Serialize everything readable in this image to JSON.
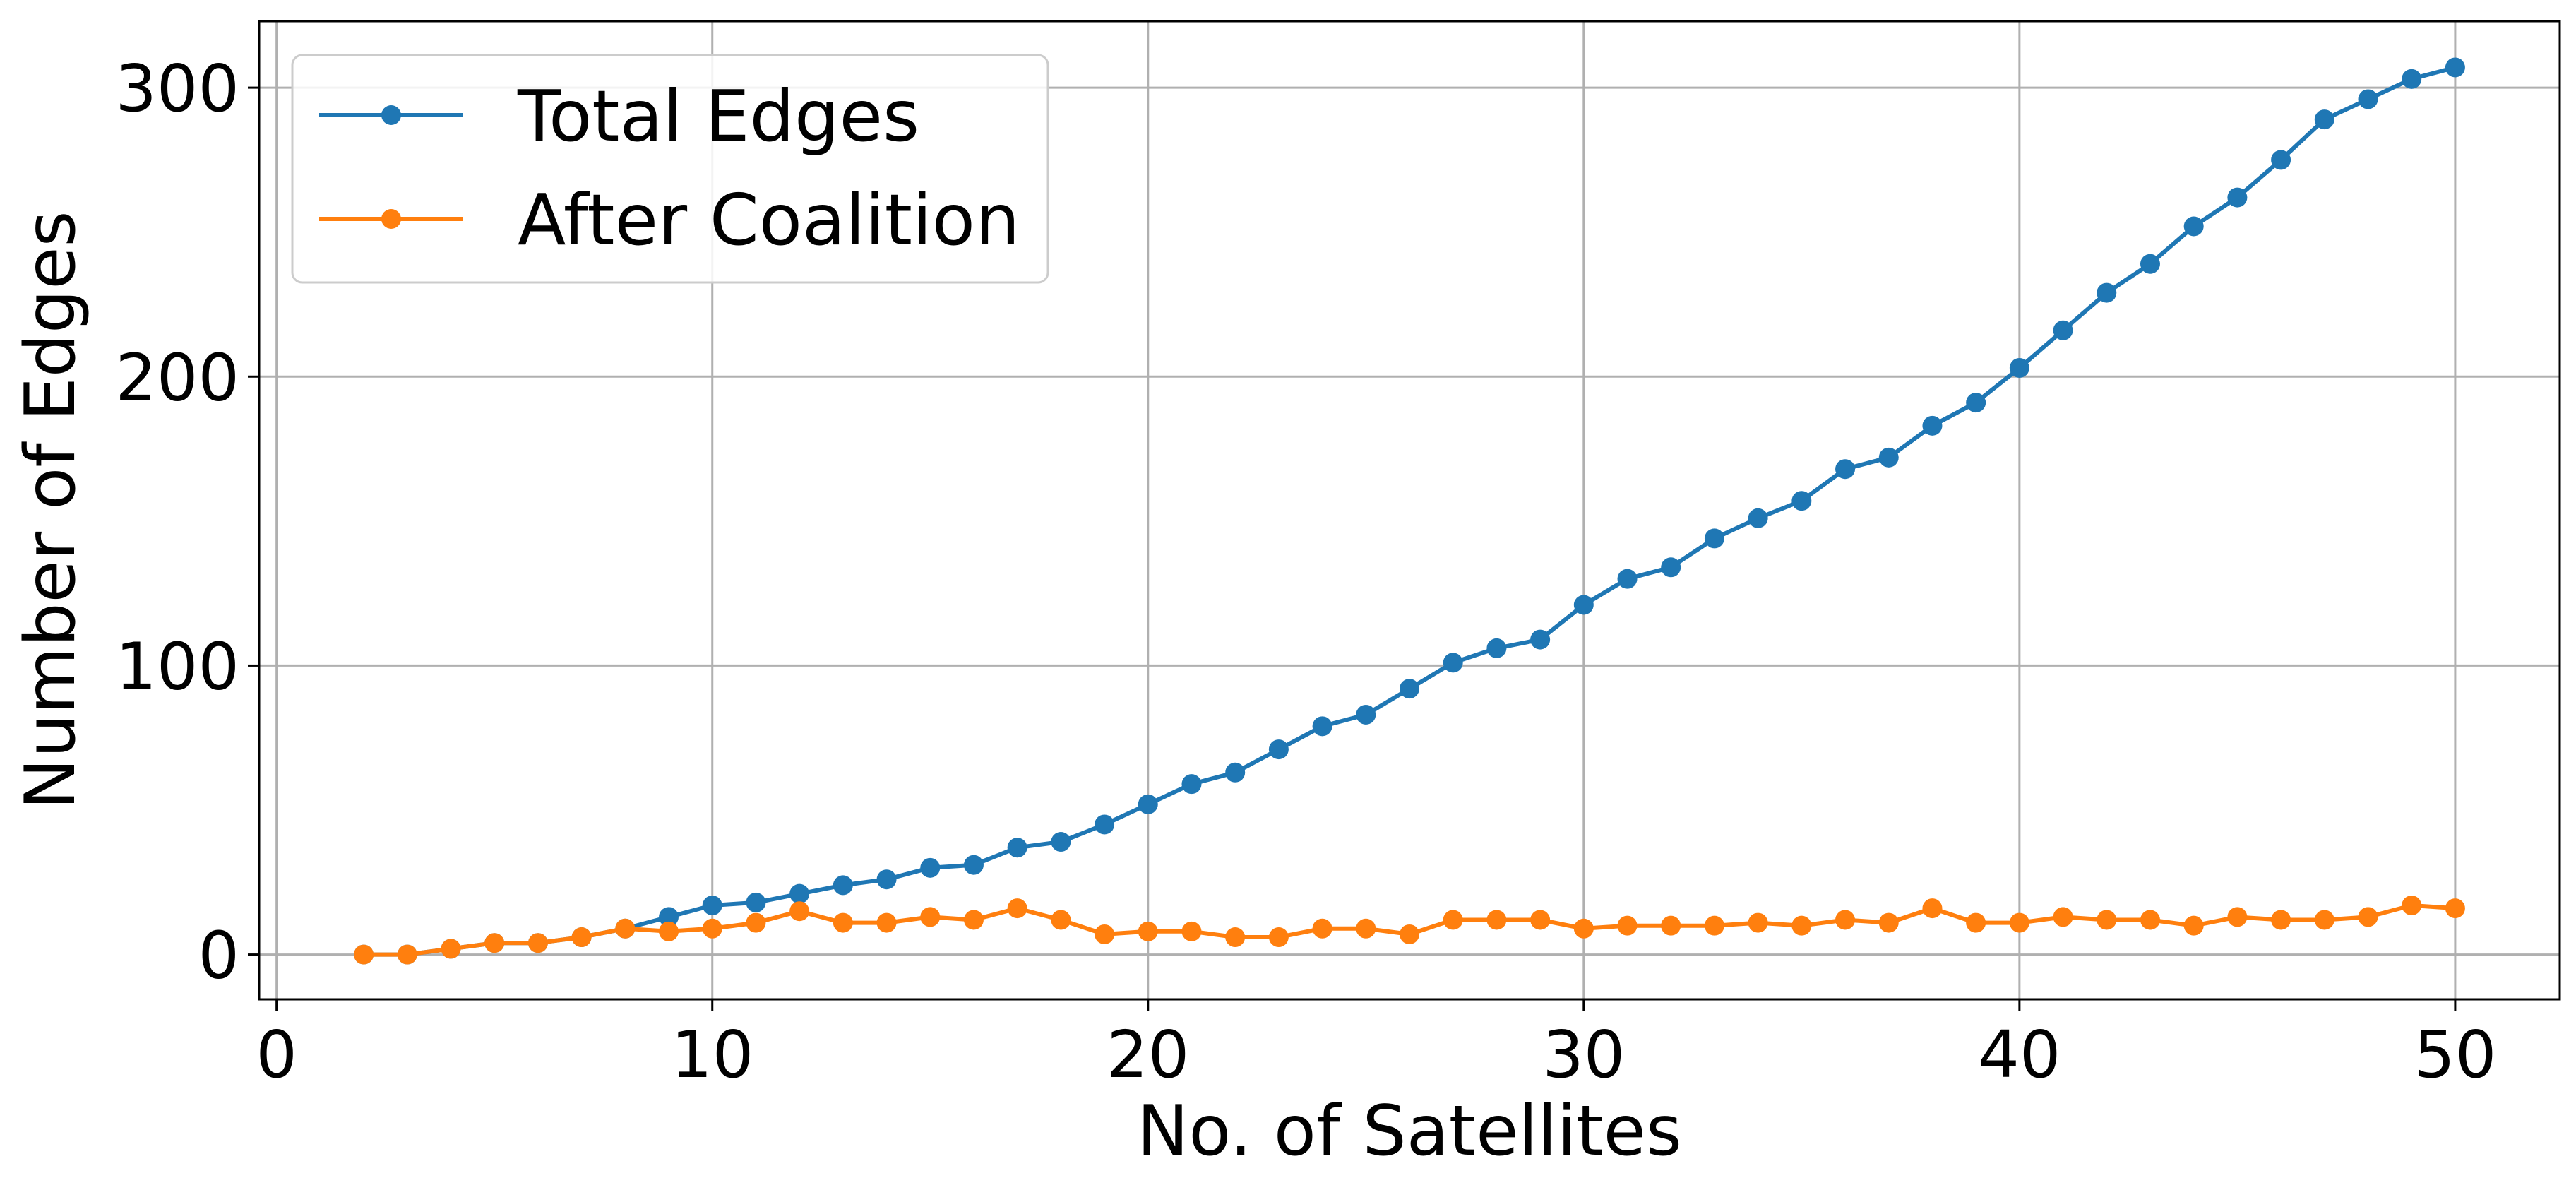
{
  "chart_data": {
    "type": "line",
    "title": "",
    "xlabel": "No. of Satellites",
    "ylabel": "Number of Edges",
    "xlim": [
      -0.4,
      52.4
    ],
    "ylim": [
      -15.5,
      323
    ],
    "xticks": [
      0,
      10,
      20,
      30,
      40,
      50
    ],
    "yticks": [
      0,
      100,
      200,
      300
    ],
    "grid": true,
    "legend_position": "upper-left",
    "x": [
      2,
      3,
      4,
      5,
      6,
      7,
      8,
      9,
      10,
      11,
      12,
      13,
      14,
      15,
      16,
      17,
      18,
      19,
      20,
      21,
      22,
      23,
      24,
      25,
      26,
      27,
      28,
      29,
      30,
      31,
      32,
      33,
      34,
      35,
      36,
      37,
      38,
      39,
      40,
      41,
      42,
      43,
      44,
      45,
      46,
      47,
      48,
      49,
      50
    ],
    "series": [
      {
        "name": "Total Edges",
        "color": "#1f77b4",
        "values": [
          0,
          0,
          2,
          4,
          4,
          6,
          9,
          13,
          17,
          18,
          21,
          24,
          26,
          30,
          31,
          37,
          39,
          45,
          52,
          59,
          63,
          71,
          79,
          83,
          92,
          101,
          106,
          109,
          121,
          130,
          134,
          144,
          151,
          157,
          168,
          172,
          183,
          191,
          203,
          216,
          229,
          239,
          252,
          262,
          275,
          289,
          296,
          303,
          307
        ]
      },
      {
        "name": "After Coalition",
        "color": "#ff7f0e",
        "values": [
          0,
          0,
          2,
          4,
          4,
          6,
          9,
          8,
          9,
          11,
          15,
          11,
          11,
          13,
          12,
          16,
          12,
          7,
          8,
          8,
          6,
          6,
          9,
          9,
          7,
          12,
          12,
          12,
          9,
          10,
          10,
          10,
          11,
          10,
          12,
          11,
          16,
          11,
          11,
          13,
          12,
          12,
          10,
          13,
          12,
          12,
          13,
          17,
          16
        ]
      }
    ]
  }
}
